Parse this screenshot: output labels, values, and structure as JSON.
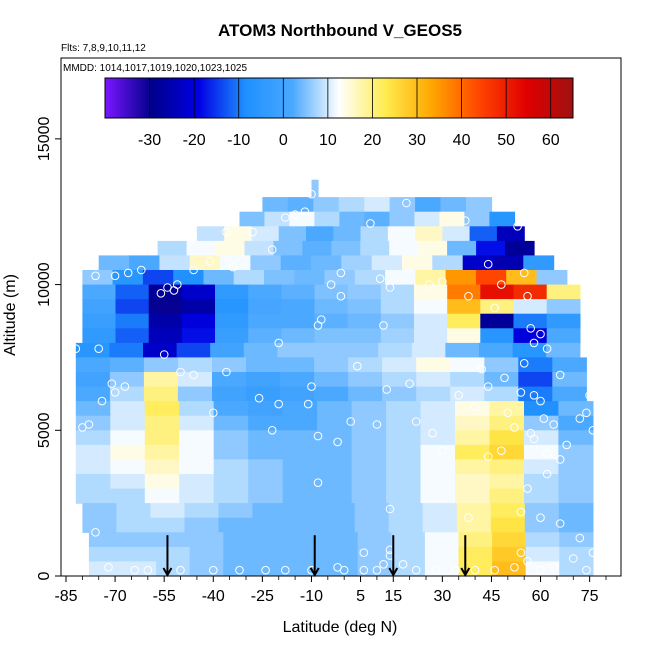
{
  "chart_data": {
    "type": "heatmap",
    "title": "ATOM3 Northbound V_GEOS5",
    "notes": [
      "Flts: 7,8,9,10,11,12",
      "MMDD: 1014,1017,1019,1020,1023,1025"
    ],
    "xlabel": "Latitude (deg N)",
    "ylabel": "Altitude (m)",
    "xlim": [
      -85,
      80
    ],
    "ylim": [
      0,
      17500
    ],
    "x_ticks": [
      -85,
      -70,
      -55,
      -40,
      -25,
      -10,
      5,
      15,
      30,
      45,
      60,
      75
    ],
    "y_ticks": [
      0,
      5000,
      10000,
      15000
    ],
    "colorbar": {
      "range": [
        -40,
        65
      ],
      "ticks": [
        -30,
        -20,
        -10,
        0,
        10,
        20,
        30,
        40,
        50,
        60
      ],
      "colors": [
        "#7b16ff",
        "#00008b",
        "#0000e5",
        "#1e90ff",
        "#4aa8ff",
        "#ffffff",
        "#ffeb4d",
        "#ffa500",
        "#ff4500",
        "#e00000",
        "#a01010"
      ]
    },
    "grid": false,
    "legend": "colorbar at top inside plot",
    "profile_markers_lat": [
      -54,
      -9,
      15,
      37
    ],
    "field_rows": [
      {
        "z": [
          13000,
          13600
        ],
        "lat": [
          -10,
          -8
        ],
        "v": [
          6
        ]
      },
      {
        "z": [
          12500,
          13000
        ],
        "lat": [
          -25,
          45
        ],
        "v": [
          4,
          3,
          6,
          8,
          10,
          6,
          2,
          4,
          6
        ]
      },
      {
        "z": [
          12000,
          12500
        ],
        "lat": [
          -32,
          52
        ],
        "v": [
          5,
          9,
          12,
          8,
          4,
          3,
          6,
          10,
          14,
          6,
          -6
        ]
      },
      {
        "z": [
          11500,
          12000
        ],
        "lat": [
          -45,
          55
        ],
        "v": [
          9,
          14,
          10,
          5,
          2,
          4,
          8,
          12,
          16,
          10,
          -12,
          -24
        ]
      },
      {
        "z": [
          11000,
          11500
        ],
        "lat": [
          -57,
          58
        ],
        "v": [
          8,
          12,
          14,
          9,
          5,
          3,
          5,
          8,
          12,
          14,
          4,
          -18,
          -28
        ]
      },
      {
        "z": [
          10500,
          11000
        ],
        "lat": [
          -75,
          64
        ],
        "v": [
          4,
          2,
          9,
          16,
          12,
          6,
          3,
          4,
          7,
          10,
          14,
          8,
          -22,
          -25,
          -4
        ]
      },
      {
        "z": [
          10000,
          10500
        ],
        "lat": [
          -80,
          68
        ],
        "v": [
          6,
          -6,
          -14,
          -8,
          4,
          8,
          5,
          4,
          6,
          8,
          12,
          18,
          35,
          44,
          30,
          6
        ]
      },
      {
        "z": [
          9500,
          10000
        ],
        "lat": [
          -80,
          72
        ],
        "v": [
          2,
          -12,
          -28,
          -22,
          -4,
          2,
          3,
          5,
          6,
          8,
          14,
          38,
          52,
          48,
          20
        ]
      },
      {
        "z": [
          9000,
          9500
        ],
        "lat": [
          -80,
          72
        ],
        "v": [
          0,
          -14,
          -30,
          -26,
          -6,
          1,
          2,
          4,
          5,
          8,
          12,
          30,
          20,
          10,
          6
        ]
      },
      {
        "z": [
          8500,
          9000
        ],
        "lat": [
          -80,
          72
        ],
        "v": [
          -2,
          -10,
          -26,
          -20,
          -4,
          2,
          2,
          3,
          4,
          6,
          10,
          22,
          -28,
          -10,
          -4
        ]
      },
      {
        "z": [
          8000,
          8500
        ],
        "lat": [
          -80,
          72
        ],
        "v": [
          -4,
          -12,
          -24,
          -18,
          -2,
          3,
          4,
          5,
          5,
          7,
          10,
          14,
          -6,
          -20,
          2
        ]
      },
      {
        "z": [
          7500,
          8000
        ],
        "lat": [
          -82,
          72
        ],
        "v": [
          -6,
          -10,
          -22,
          -14,
          0,
          4,
          6,
          6,
          6,
          8,
          10,
          4,
          2,
          -6,
          4
        ]
      },
      {
        "z": [
          7000,
          7500
        ],
        "lat": [
          -82,
          74
        ],
        "v": [
          2,
          3,
          6,
          8,
          6,
          4,
          4,
          6,
          8,
          10,
          14,
          12,
          6,
          -10,
          2
        ]
      },
      {
        "z": [
          6500,
          7000
        ],
        "lat": [
          -82,
          74
        ],
        "v": [
          0,
          6,
          18,
          10,
          2,
          0,
          2,
          4,
          6,
          8,
          10,
          8,
          4,
          -14,
          4
        ]
      },
      {
        "z": [
          6000,
          6500
        ],
        "lat": [
          -82,
          74
        ],
        "v": [
          2,
          8,
          20,
          6,
          0,
          -2,
          0,
          2,
          4,
          6,
          8,
          10,
          8,
          -10,
          2
        ]
      },
      {
        "z": [
          5500,
          6000
        ],
        "lat": [
          -82,
          76
        ],
        "v": [
          4,
          10,
          22,
          8,
          2,
          0,
          2,
          4,
          6,
          8,
          10,
          14,
          18,
          -8,
          4
        ]
      },
      {
        "z": [
          5000,
          5500
        ],
        "lat": [
          -82,
          76
        ],
        "v": [
          6,
          10,
          20,
          10,
          4,
          2,
          2,
          4,
          6,
          8,
          10,
          16,
          20,
          6,
          2
        ]
      },
      {
        "z": [
          4500,
          5000
        ],
        "lat": [
          -82,
          76
        ],
        "v": [
          8,
          12,
          20,
          12,
          6,
          4,
          4,
          4,
          6,
          8,
          10,
          18,
          24,
          10,
          4
        ]
      },
      {
        "z": [
          4000,
          4500
        ],
        "lat": [
          -82,
          76
        ],
        "v": [
          10,
          14,
          18,
          12,
          6,
          4,
          4,
          4,
          6,
          8,
          12,
          22,
          26,
          12,
          6
        ]
      },
      {
        "z": [
          3500,
          4000
        ],
        "lat": [
          -82,
          76
        ],
        "v": [
          10,
          12,
          16,
          12,
          8,
          6,
          4,
          4,
          6,
          8,
          12,
          18,
          20,
          10,
          6
        ]
      },
      {
        "z": [
          3000,
          3500
        ],
        "lat": [
          -82,
          76
        ],
        "v": [
          8,
          10,
          14,
          10,
          8,
          6,
          4,
          4,
          6,
          8,
          12,
          16,
          18,
          8,
          6
        ]
      },
      {
        "z": [
          2500,
          3000
        ],
        "lat": [
          -82,
          76
        ],
        "v": [
          8,
          8,
          12,
          10,
          8,
          6,
          4,
          4,
          6,
          8,
          12,
          16,
          20,
          8,
          6
        ]
      },
      {
        "z": [
          2000,
          2500
        ],
        "lat": [
          -80,
          76
        ],
        "v": [
          6,
          8,
          10,
          8,
          6,
          4,
          4,
          4,
          6,
          8,
          10,
          18,
          22,
          6,
          4
        ]
      },
      {
        "z": [
          1500,
          2000
        ],
        "lat": [
          -80,
          76
        ],
        "v": [
          6,
          8,
          8,
          6,
          4,
          4,
          4,
          4,
          6,
          8,
          10,
          18,
          24,
          6,
          4
        ]
      },
      {
        "z": [
          1000,
          1500
        ],
        "lat": [
          -78,
          76
        ],
        "v": [
          6,
          6,
          6,
          6,
          4,
          4,
          4,
          4,
          6,
          8,
          12,
          20,
          26,
          8,
          6
        ]
      },
      {
        "z": [
          500,
          1000
        ],
        "lat": [
          -78,
          76
        ],
        "v": [
          8,
          8,
          8,
          6,
          4,
          4,
          4,
          4,
          6,
          8,
          12,
          22,
          28,
          10,
          8
        ]
      },
      {
        "z": [
          0,
          500
        ],
        "lat": [
          -78,
          76
        ],
        "v": [
          10,
          10,
          8,
          6,
          4,
          4,
          4,
          4,
          6,
          8,
          12,
          22,
          30,
          12,
          8
        ]
      }
    ],
    "observations": [
      [
        -56,
        9700
      ],
      [
        -54,
        9900
      ],
      [
        -51,
        10000
      ],
      [
        -52,
        9800
      ],
      [
        -62,
        10500
      ],
      [
        -66,
        10400
      ],
      [
        -70,
        10300
      ],
      [
        -76,
        10300
      ],
      [
        -55,
        7600
      ],
      [
        -46,
        10500
      ],
      [
        -41,
        10800
      ],
      [
        -34,
        10600
      ],
      [
        -36,
        11800
      ],
      [
        -28,
        11800
      ],
      [
        -22,
        11200
      ],
      [
        -15,
        12400
      ],
      [
        -12,
        12500
      ],
      [
        -18,
        12300
      ],
      [
        -10,
        13100
      ],
      [
        -7,
        8800
      ],
      [
        -8,
        8600
      ],
      [
        -1,
        9600
      ],
      [
        -1,
        10400
      ],
      [
        -4,
        10000
      ],
      [
        8,
        12100
      ],
      [
        11,
        10200
      ],
      [
        14,
        9900
      ],
      [
        19,
        12800
      ],
      [
        26,
        10000
      ],
      [
        30,
        10100
      ],
      [
        37,
        12200
      ],
      [
        38,
        9600
      ],
      [
        44,
        10700
      ],
      [
        46,
        9200
      ],
      [
        48,
        10000
      ],
      [
        53,
        12000
      ],
      [
        55,
        10400
      ],
      [
        56,
        9600
      ],
      [
        57,
        8500
      ],
      [
        58,
        8000
      ],
      [
        60,
        8300
      ],
      [
        62,
        7800
      ],
      [
        66,
        6900
      ],
      [
        -75,
        7800
      ],
      [
        -71,
        6600
      ],
      [
        -70,
        6300
      ],
      [
        -67,
        6500
      ],
      [
        -74,
        6000
      ],
      [
        -80,
        5100
      ],
      [
        -50,
        7000
      ],
      [
        -46,
        6900
      ],
      [
        -40,
        5600
      ],
      [
        -36,
        7000
      ],
      [
        -26,
        6100
      ],
      [
        -20,
        5900
      ],
      [
        -10,
        6500
      ],
      [
        -20,
        8000
      ],
      [
        -22,
        5000
      ],
      [
        -11,
        5900
      ],
      [
        -8,
        4800
      ],
      [
        -2,
        4600
      ],
      [
        2,
        5300
      ],
      [
        4,
        7200
      ],
      [
        10,
        5200
      ],
      [
        12,
        8600
      ],
      [
        13,
        6400
      ],
      [
        20,
        6600
      ],
      [
        22,
        5300
      ],
      [
        27,
        4900
      ],
      [
        35,
        6200
      ],
      [
        40,
        5800
      ],
      [
        42,
        7100
      ],
      [
        44,
        6500
      ],
      [
        49,
        6800
      ],
      [
        50,
        5600
      ],
      [
        52,
        5100
      ],
      [
        54,
        6300
      ],
      [
        55,
        7300
      ],
      [
        57,
        4900
      ],
      [
        58,
        6200
      ],
      [
        60,
        6000
      ],
      [
        61,
        5400
      ],
      [
        62,
        4200
      ],
      [
        64,
        5200
      ],
      [
        66,
        4000
      ],
      [
        68,
        4500
      ],
      [
        72,
        5400
      ],
      [
        74,
        5600
      ],
      [
        75,
        6200
      ],
      [
        76,
        5000
      ],
      [
        58,
        4700
      ],
      [
        62,
        3500
      ],
      [
        56,
        3000
      ],
      [
        48,
        4300
      ],
      [
        44,
        4100
      ],
      [
        30,
        4300
      ],
      [
        -8,
        3200
      ],
      [
        14,
        2300
      ],
      [
        38,
        2000
      ],
      [
        54,
        2200
      ],
      [
        60,
        2000
      ],
      [
        66,
        1800
      ],
      [
        72,
        1300
      ],
      [
        -82,
        7800
      ],
      [
        -78,
        5200
      ],
      [
        -76,
        1500
      ],
      [
        -72,
        300
      ],
      [
        -80,
        200
      ],
      [
        -64,
        200
      ],
      [
        -60,
        200
      ],
      [
        -50,
        200
      ],
      [
        -40,
        200
      ],
      [
        -32,
        200
      ],
      [
        -24,
        200
      ],
      [
        -18,
        200
      ],
      [
        -10,
        200
      ],
      [
        0,
        200
      ],
      [
        6,
        200
      ],
      [
        10,
        200
      ],
      [
        12,
        400
      ],
      [
        14,
        700
      ],
      [
        18,
        400
      ],
      [
        22,
        200
      ],
      [
        28,
        200
      ],
      [
        34,
        200
      ],
      [
        40,
        200
      ],
      [
        46,
        200
      ],
      [
        52,
        300
      ],
      [
        56,
        500
      ],
      [
        60,
        200
      ],
      [
        64,
        300
      ],
      [
        70,
        600
      ],
      [
        74,
        200
      ],
      [
        76,
        800
      ],
      [
        14,
        900
      ],
      [
        6,
        800
      ],
      [
        -2,
        300
      ],
      [
        54,
        800
      ]
    ]
  }
}
